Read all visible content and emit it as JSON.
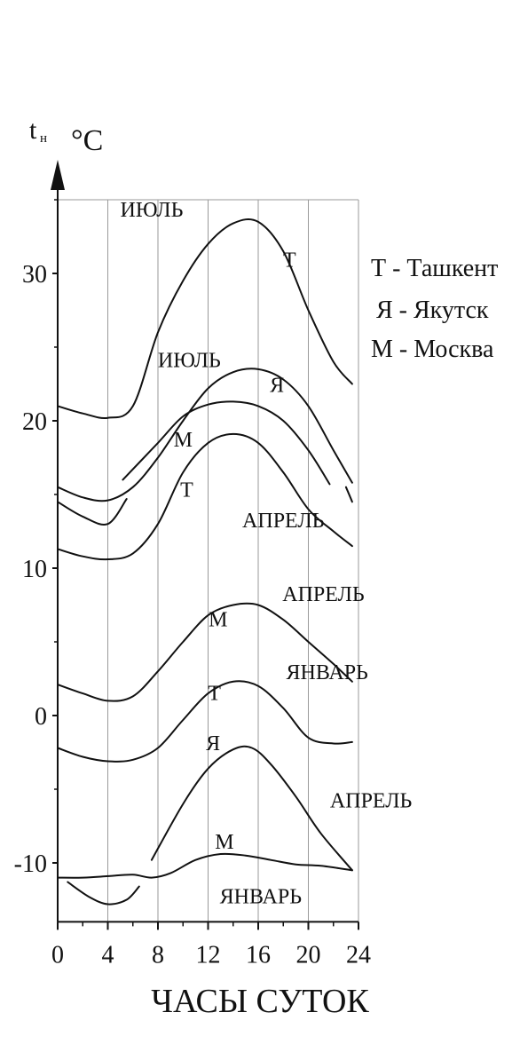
{
  "chart_data": {
    "type": "line",
    "ylabel_main": "t",
    "ylabel_sub": "н",
    "yunit": "°C",
    "xlabel": "ЧАСЫ СУТОК",
    "xlim": [
      0,
      24
    ],
    "ylim": [
      -14,
      35
    ],
    "xticks": [
      0,
      4,
      8,
      12,
      16,
      20,
      24
    ],
    "yticks": [
      -10,
      0,
      10,
      20,
      30
    ],
    "grid_x": [
      4,
      8,
      12,
      16,
      20,
      24
    ],
    "legend": [
      "Т - Ташкент",
      "Я - Якутск",
      "М - Москва"
    ],
    "legend_position": "top-right",
    "series": [
      {
        "city": "Т",
        "month": "ИЮЛЬ",
        "x": [
          0,
          2,
          4,
          6,
          8,
          10,
          12,
          14,
          16,
          18,
          20,
          22,
          23.5
        ],
        "y": [
          21,
          20.5,
          20.2,
          21,
          26,
          29.5,
          32,
          33.4,
          33.5,
          31.5,
          27.5,
          24,
          22.5
        ]
      },
      {
        "city": "Я",
        "month": "ИЮЛЬ",
        "x": [
          0,
          2,
          4,
          6,
          8,
          10,
          12,
          14,
          16,
          18,
          20,
          22,
          23.5
        ],
        "y": [
          15.5,
          14.8,
          14.6,
          15.5,
          17.5,
          20,
          22.2,
          23.3,
          23.5,
          22.8,
          21,
          18,
          15.8
        ]
      },
      {
        "city": "М",
        "month": "ИЮЛЬ",
        "x": [
          0,
          2,
          4,
          5.5
        ],
        "y": [
          14.5,
          13.5,
          13,
          14.7
        ]
      },
      {
        "city": "М",
        "month": "ИЮЛЬ",
        "x": [
          5.2,
          8,
          10,
          12,
          14,
          16,
          18,
          20,
          21.7
        ],
        "y": [
          16,
          18.5,
          20.3,
          21.1,
          21.3,
          21,
          20,
          18,
          15.7
        ]
      },
      {
        "city": "М",
        "month": "ИЮЛЬ",
        "x": [
          23,
          23.5
        ],
        "y": [
          15.5,
          14.5
        ]
      },
      {
        "city": "Т",
        "month": "АПРЕЛЬ",
        "x": [
          0,
          2,
          4,
          6,
          8,
          10,
          12,
          14,
          16,
          18,
          20,
          22,
          23.5
        ],
        "y": [
          11.3,
          10.8,
          10.6,
          11,
          13,
          16.5,
          18.5,
          19.1,
          18.5,
          16.5,
          14,
          12.5,
          11.5
        ]
      },
      {
        "city": "М",
        "month": "АПРЕЛЬ",
        "x": [
          0,
          2,
          4,
          6,
          8,
          10,
          12,
          14,
          16,
          18,
          20,
          22,
          23.5
        ],
        "y": [
          2.1,
          1.5,
          1,
          1.3,
          3,
          5,
          6.8,
          7.5,
          7.5,
          6.5,
          5,
          3.5,
          2.3
        ]
      },
      {
        "city": "Т",
        "month": "ЯНВАРЬ",
        "x": [
          0,
          2,
          4,
          6,
          8,
          10,
          12,
          14,
          16,
          18,
          20,
          22,
          23.5
        ],
        "y": [
          -2.2,
          -2.8,
          -3.1,
          -3,
          -2.2,
          -0.3,
          1.5,
          2.3,
          2,
          0.5,
          -1.5,
          -1.9,
          -1.8
        ]
      },
      {
        "city": "Я",
        "month": "АПРЕЛЬ",
        "x": [
          7.5,
          10,
          12,
          14,
          15.5,
          17,
          19,
          21,
          23.5
        ],
        "y": [
          -9.8,
          -6,
          -3.6,
          -2.3,
          -2.2,
          -3.3,
          -5.5,
          -8,
          -10.5
        ]
      },
      {
        "city": "М",
        "month": "ЯНВАРЬ",
        "x": [
          0,
          2,
          4,
          6,
          7.5,
          9,
          11,
          13,
          15,
          17,
          19,
          21,
          23.5
        ],
        "y": [
          -11,
          -11,
          -10.9,
          -10.8,
          -11,
          -10.7,
          -9.8,
          -9.4,
          -9.5,
          -9.8,
          -10.1,
          -10.2,
          -10.5
        ]
      },
      {
        "city": "Я",
        "month": "ЯНВАРЬ",
        "x": [
          0.8,
          2.5,
          4,
          5.5,
          6.5
        ],
        "y": [
          -11.3,
          -12.3,
          -12.8,
          -12.5,
          -11.6
        ]
      }
    ],
    "annotations": [
      {
        "text": "ИЮЛЬ",
        "x": 7.5,
        "y": 34.4
      },
      {
        "text": "Т",
        "x": 18.5,
        "y": 31
      },
      {
        "text": "ИЮЛЬ",
        "x": 10.5,
        "y": 24.2
      },
      {
        "text": "Я",
        "x": 17.5,
        "y": 22.5
      },
      {
        "text": "М",
        "x": 10,
        "y": 18.8
      },
      {
        "text": "Т",
        "x": 10.3,
        "y": 15.4
      },
      {
        "text": "АПРЕЛЬ",
        "x": 18,
        "y": 13.3
      },
      {
        "text": "М",
        "x": 12.8,
        "y": 6.6
      },
      {
        "text": "АПРЕЛЬ",
        "x": 21.2,
        "y": 8.3
      },
      {
        "text": "Т",
        "x": 12.5,
        "y": 1.6
      },
      {
        "text": "ЯНВАРЬ",
        "x": 21.5,
        "y": 3
      },
      {
        "text": "Я",
        "x": 12.4,
        "y": -1.8
      },
      {
        "text": "АПРЕЛЬ",
        "x": 25,
        "y": -5.7
      },
      {
        "text": "М",
        "x": 13.3,
        "y": -8.5
      },
      {
        "text": "ЯНВАРЬ",
        "x": 16.2,
        "y": -12.2
      }
    ]
  }
}
